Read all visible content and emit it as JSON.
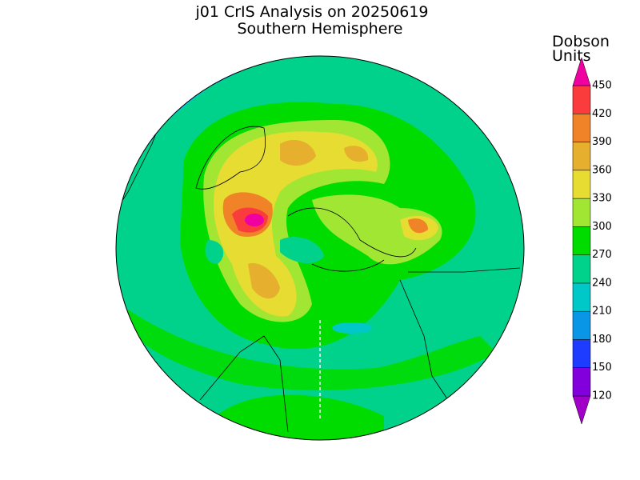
{
  "title": [
    "j01 CrIS Analysis on 20250619",
    "Southern Hemisphere"
  ],
  "legend": {
    "title": [
      "Dobson",
      "Units"
    ],
    "levels": [
      120,
      150,
      180,
      210,
      240,
      270,
      300,
      330,
      360,
      390,
      420,
      450
    ],
    "colors": [
      "#a000c8",
      "#8200dc",
      "#1e3cff",
      "#0a96e6",
      "#00c8c8",
      "#00d28c",
      "#00dc00",
      "#a0e632",
      "#e6dc32",
      "#e6af2d",
      "#f08228",
      "#fa3c3c",
      "#f000a0"
    ]
  }
}
